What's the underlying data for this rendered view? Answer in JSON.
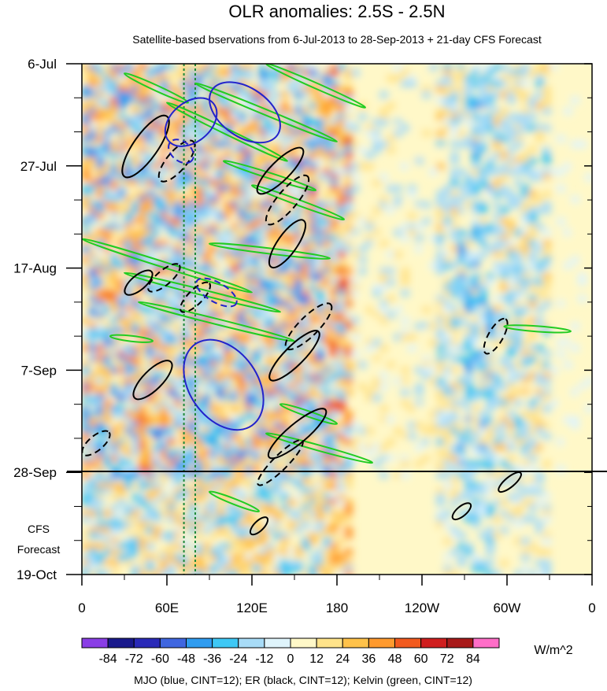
{
  "chart_data": {
    "type": "heatmap",
    "title": "OLR anomalies: 2.5S - 2.5N",
    "subtitle": "Satellite-based bservations from 6-Jul-2013 to 28-Sep-2013 + 21-day CFS Forecast",
    "y_tick_labels": [
      "6-Jul",
      "27-Jul",
      "17-Aug",
      "7-Sep",
      "28-Sep",
      "19-Oct"
    ],
    "y_tick_days": [
      0,
      21,
      42,
      63,
      84,
      105
    ],
    "x_tick_labels": [
      "0",
      "60E",
      "120E",
      "180",
      "120W",
      "60W",
      "0"
    ],
    "x_tick_lons": [
      0,
      60,
      120,
      180,
      240,
      300,
      360
    ],
    "forecast_label_line1": "CFS",
    "forecast_label_line2": "Forecast",
    "observation_end_day": 84,
    "reference_lines_lon": [
      72,
      80
    ],
    "colorbar": {
      "labels": [
        "-84",
        "-72",
        "-60",
        "-48",
        "-36",
        "-24",
        "-12",
        "0",
        "12",
        "24",
        "36",
        "48",
        "60",
        "72",
        "84"
      ],
      "colors": [
        "#8a3ee6",
        "#1a1a8c",
        "#2a2ab8",
        "#3f66e0",
        "#2f9cf0",
        "#3ec8f5",
        "#a8dcf7",
        "#dff4fb",
        "#fff8c8",
        "#ffe38a",
        "#ffc24a",
        "#ff9a2e",
        "#f25a1e",
        "#d01e1e",
        "#a81a1a",
        "#ff6ec8"
      ],
      "unit": "W/m^2"
    },
    "footnote": "MJO (blue, CINT=12); ER (black, CINT=12); Kelvin (green, CINT=12)",
    "series_colors": {
      "MJO": "#2222cc",
      "ER": "#000000",
      "Kelvin": "#22cc22"
    },
    "mjo_contours": [
      {
        "lon": 77,
        "day": 12,
        "dlon": 14,
        "dday": 12,
        "angle": 50,
        "dash": false
      },
      {
        "lon": 115,
        "day": 10,
        "dlon": 28,
        "dday": 10,
        "angle": 35,
        "dash": false
      },
      {
        "lon": 100,
        "day": 66,
        "dlon": 35,
        "dday": 14,
        "angle": 55,
        "dash": false
      },
      {
        "lon": 70,
        "day": 18,
        "dlon": 10,
        "dday": 4,
        "angle": 40,
        "dash": true
      },
      {
        "lon": 95,
        "day": 47,
        "dlon": 16,
        "dday": 4,
        "angle": 30,
        "dash": true
      }
    ],
    "er_contours": [
      {
        "lon": 45,
        "day": 17,
        "dlon": 26,
        "dday": 5,
        "angle": -55,
        "dash": false
      },
      {
        "lon": 40,
        "day": 45,
        "dlon": 12,
        "dday": 3,
        "angle": -40,
        "dash": false
      },
      {
        "lon": 50,
        "day": 65,
        "dlon": 18,
        "dday": 4,
        "angle": -45,
        "dash": false
      },
      {
        "lon": 140,
        "day": 22,
        "dlon": 22,
        "dday": 4,
        "angle": -45,
        "dash": false
      },
      {
        "lon": 145,
        "day": 37,
        "dlon": 20,
        "dday": 4,
        "angle": -55,
        "dash": false
      },
      {
        "lon": 150,
        "day": 60,
        "dlon": 24,
        "dday": 4,
        "angle": -45,
        "dash": false
      },
      {
        "lon": 152,
        "day": 76,
        "dlon": 26,
        "dday": 4,
        "angle": -40,
        "dash": false
      },
      {
        "lon": 67,
        "day": 20,
        "dlon": 18,
        "dday": 4,
        "angle": -50,
        "dash": true
      },
      {
        "lon": 58,
        "day": 44,
        "dlon": 14,
        "dday": 3,
        "angle": -40,
        "dash": true
      },
      {
        "lon": 80,
        "day": 48,
        "dlon": 14,
        "dday": 3,
        "angle": -45,
        "dash": true
      },
      {
        "lon": 145,
        "day": 28,
        "dlon": 22,
        "dday": 4,
        "angle": -50,
        "dash": true
      },
      {
        "lon": 160,
        "day": 54,
        "dlon": 22,
        "dday": 4,
        "angle": -45,
        "dash": true
      },
      {
        "lon": 140,
        "day": 82,
        "dlon": 22,
        "dday": 3,
        "angle": -45,
        "dash": true
      },
      {
        "lon": 10,
        "day": 78,
        "dlon": 12,
        "dday": 3,
        "angle": -40,
        "dash": true
      },
      {
        "lon": 292,
        "day": 56,
        "dlon": 14,
        "dday": 3,
        "angle": -60,
        "dash": true
      },
      {
        "lon": 302,
        "day": 86,
        "dlon": 10,
        "dday": 2,
        "angle": -40,
        "dash": false
      },
      {
        "lon": 268,
        "day": 92,
        "dlon": 8,
        "dday": 2,
        "angle": -40,
        "dash": false
      },
      {
        "lon": 125,
        "day": 95,
        "dlon": 8,
        "dday": 2,
        "angle": -45,
        "dash": false
      }
    ],
    "kelvin_contours": [
      {
        "lon1": 30,
        "day1": 2,
        "lon2": 75,
        "day2": 8
      },
      {
        "lon1": 80,
        "day1": 4,
        "lon2": 180,
        "day2": 16
      },
      {
        "lon1": 60,
        "day1": 8,
        "lon2": 145,
        "day2": 20
      },
      {
        "lon1": 130,
        "day1": 0,
        "lon2": 200,
        "day2": 9
      },
      {
        "lon1": 100,
        "day1": 20,
        "lon2": 165,
        "day2": 26
      },
      {
        "lon1": 120,
        "day1": 25,
        "lon2": 185,
        "day2": 32
      },
      {
        "lon1": 0,
        "day1": 36,
        "lon2": 120,
        "day2": 47
      },
      {
        "lon1": 30,
        "day1": 43,
        "lon2": 140,
        "day2": 51
      },
      {
        "lon1": 40,
        "day1": 49,
        "lon2": 150,
        "day2": 57
      },
      {
        "lon1": 90,
        "day1": 37,
        "lon2": 175,
        "day2": 40
      },
      {
        "lon1": 130,
        "day1": 76,
        "lon2": 205,
        "day2": 82
      },
      {
        "lon1": 140,
        "day1": 70,
        "lon2": 180,
        "day2": 74
      },
      {
        "lon1": 90,
        "day1": 88,
        "lon2": 125,
        "day2": 92
      },
      {
        "lon1": 298,
        "day1": 54,
        "lon2": 345,
        "day2": 55
      },
      {
        "lon1": 20,
        "day1": 56,
        "lon2": 50,
        "day2": 57
      }
    ]
  }
}
